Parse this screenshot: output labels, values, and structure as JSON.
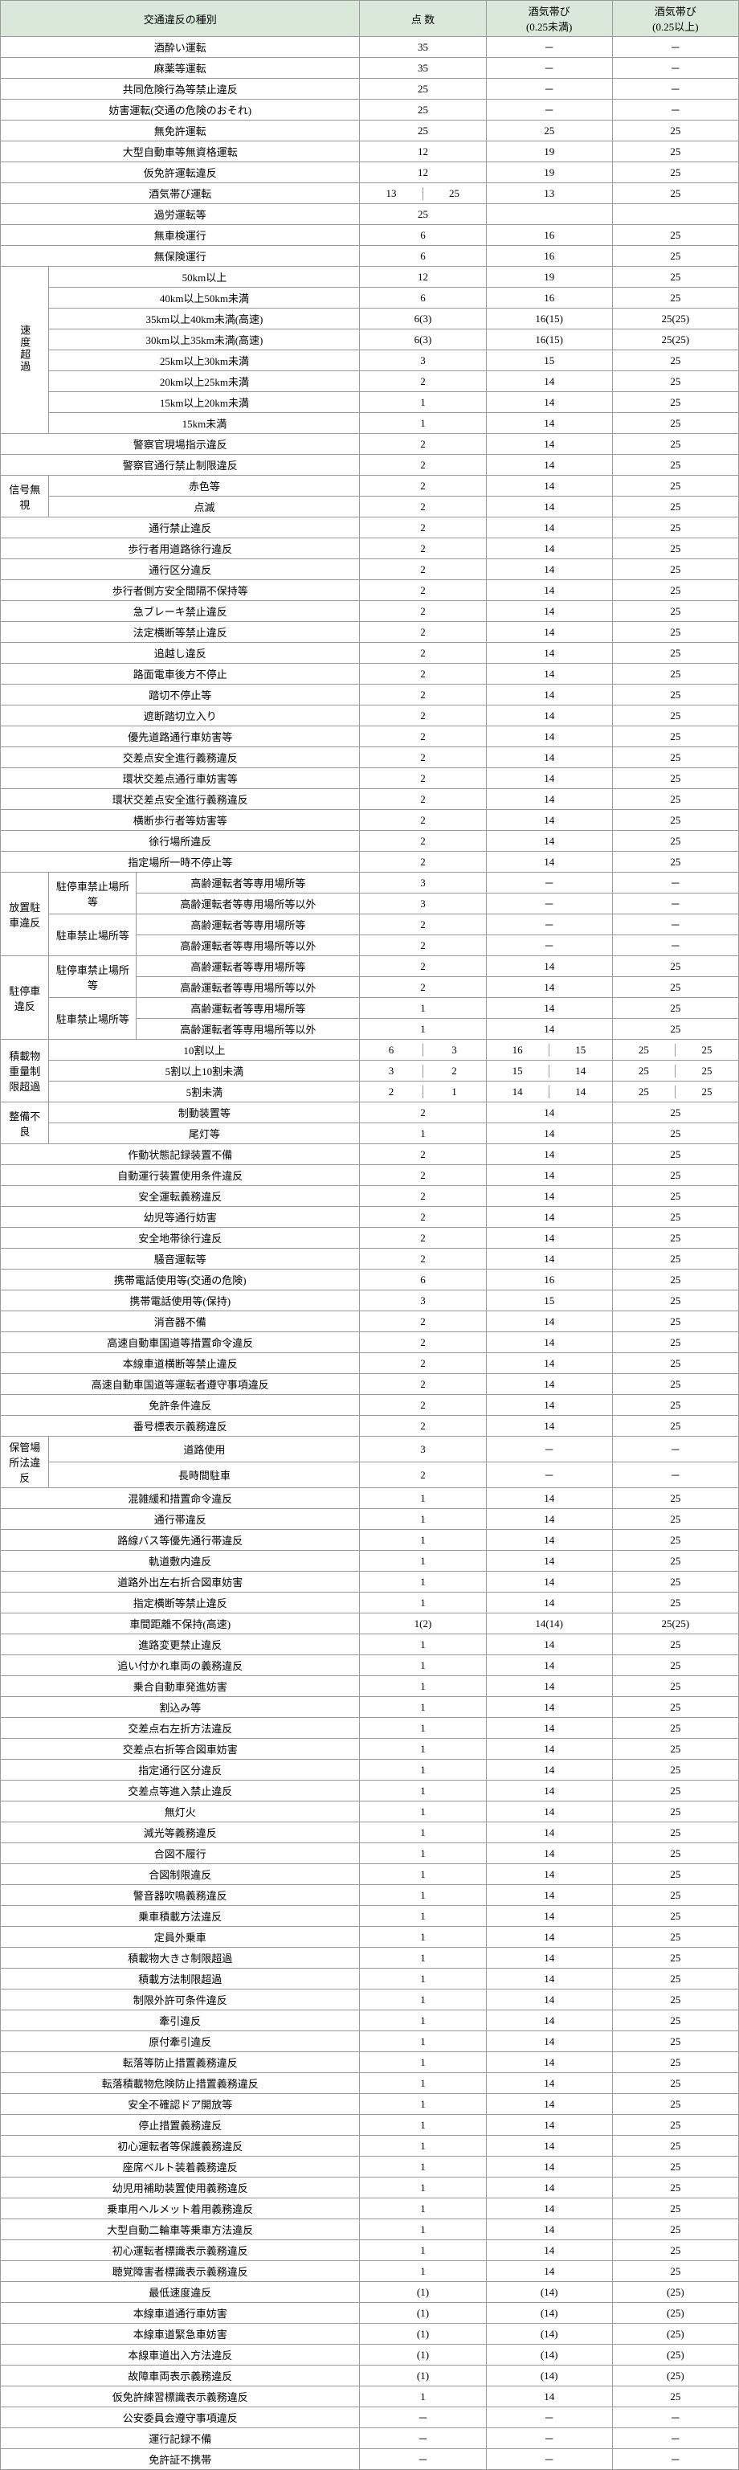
{
  "headers": {
    "type": "交通違反の種別",
    "points": "点 数",
    "sake_lo": "酒気帯び<br>(0.25未満)",
    "sake_hi": "酒気帯び<br>(0.25以上)"
  },
  "colors": {
    "header_bg": "#d9e8d9",
    "border": "#999999",
    "text": "#000000"
  },
  "simpleRows1": [
    [
      "酒酔い運転",
      "35",
      "－",
      "－"
    ],
    [
      "麻薬等運転",
      "35",
      "－",
      "－"
    ],
    [
      "共同危険行為等禁止違反",
      "25",
      "－",
      "－"
    ],
    [
      "妨害運転(交通の危険のおそれ)",
      "25",
      "－",
      "－"
    ],
    [
      "無免許運転",
      "25",
      "25",
      "25"
    ],
    [
      "大型自動車等無資格運転",
      "12",
      "19",
      "25"
    ],
    [
      "仮免許運転違反",
      "12",
      "19",
      "25"
    ]
  ],
  "sakeRow": {
    "label": "酒気帯び運転",
    "pts_a": "13",
    "pts_b": "25",
    "lo": "13",
    "hi": "25"
  },
  "simpleRows2": [
    [
      "過労運転等",
      "25",
      "",
      ""
    ],
    [
      "無車検運行",
      "6",
      "16",
      "25"
    ],
    [
      "無保険運行",
      "6",
      "16",
      "25"
    ]
  ],
  "speed": {
    "label": "速度超過",
    "rows": [
      [
        "50km以上",
        "12",
        "19",
        "25"
      ],
      [
        "40km以上50km未満",
        "6",
        "16",
        "25"
      ],
      [
        "35km以上40km未満(高速)",
        "6(3)",
        "16(15)",
        "25(25)"
      ],
      [
        "30km以上35km未満(高速)",
        "6(3)",
        "16(15)",
        "25(25)"
      ],
      [
        "25km以上30km未満",
        "3",
        "15",
        "25"
      ],
      [
        "20km以上25km未満",
        "2",
        "14",
        "25"
      ],
      [
        "15km以上20km未満",
        "1",
        "14",
        "25"
      ],
      [
        "15km未満",
        "1",
        "14",
        "25"
      ]
    ]
  },
  "simpleRows3": [
    [
      "警察官現場指示違反",
      "2",
      "14",
      "25"
    ],
    [
      "警察官通行禁止制限違反",
      "2",
      "14",
      "25"
    ]
  ],
  "signal": {
    "label": "信号無視",
    "rows": [
      [
        "赤色等",
        "2",
        "14",
        "25"
      ],
      [
        "点滅",
        "2",
        "14",
        "25"
      ]
    ]
  },
  "simpleRows4": [
    [
      "通行禁止違反",
      "2",
      "14",
      "25"
    ],
    [
      "歩行者用道路徐行違反",
      "2",
      "14",
      "25"
    ],
    [
      "通行区分違反",
      "2",
      "14",
      "25"
    ],
    [
      "歩行者側方安全間隔不保持等",
      "2",
      "14",
      "25"
    ],
    [
      "急ブレーキ禁止違反",
      "2",
      "14",
      "25"
    ],
    [
      "法定横断等禁止違反",
      "2",
      "14",
      "25"
    ],
    [
      "追越し違反",
      "2",
      "14",
      "25"
    ],
    [
      "路面電車後方不停止",
      "2",
      "14",
      "25"
    ],
    [
      "踏切不停止等",
      "2",
      "14",
      "25"
    ],
    [
      "遮断踏切立入り",
      "2",
      "14",
      "25"
    ],
    [
      "優先道路通行車妨害等",
      "2",
      "14",
      "25"
    ],
    [
      "交差点安全進行義務違反",
      "2",
      "14",
      "25"
    ],
    [
      "環状交差点通行車妨害等",
      "2",
      "14",
      "25"
    ],
    [
      "環状交差点安全進行義務違反",
      "2",
      "14",
      "25"
    ],
    [
      "横断歩行者等妨害等",
      "2",
      "14",
      "25"
    ],
    [
      "徐行場所違反",
      "2",
      "14",
      "25"
    ],
    [
      "指定場所一時不停止等",
      "2",
      "14",
      "25"
    ]
  ],
  "houchi": {
    "label": "放置駐車違反",
    "groups": [
      {
        "sub": "駐停車禁止場所等",
        "rows": [
          [
            "高齢運転者等専用場所等",
            "3",
            "－",
            "－"
          ],
          [
            "高齢運転者等専用場所等以外",
            "3",
            "－",
            "－"
          ]
        ]
      },
      {
        "sub": "駐車禁止場所等",
        "rows": [
          [
            "高齢運転者等専用場所等",
            "2",
            "－",
            "－"
          ],
          [
            "高齢運転者等専用場所等以外",
            "2",
            "－",
            "－"
          ]
        ]
      }
    ]
  },
  "chusha": {
    "label": "駐停車違反",
    "groups": [
      {
        "sub": "駐停車禁止場所等",
        "rows": [
          [
            "高齢運転者等専用場所等",
            "2",
            "14",
            "25"
          ],
          [
            "高齢運転者等専用場所等以外",
            "2",
            "14",
            "25"
          ]
        ]
      },
      {
        "sub": "駐車禁止場所等",
        "rows": [
          [
            "高齢運転者等専用場所等",
            "1",
            "14",
            "25"
          ],
          [
            "高齢運転者等専用場所等以外",
            "1",
            "14",
            "25"
          ]
        ]
      }
    ]
  },
  "sekisai": {
    "label": "積載物重量制限超過",
    "rows": [
      {
        "l": "10割以上",
        "p": [
          "6",
          "3"
        ],
        "lo": [
          "16",
          "15"
        ],
        "hi": [
          "25",
          "25"
        ]
      },
      {
        "l": "5割以上10割未満",
        "p": [
          "3",
          "2"
        ],
        "lo": [
          "15",
          "14"
        ],
        "hi": [
          "25",
          "25"
        ]
      },
      {
        "l": "5割未満",
        "p": [
          "2",
          "1"
        ],
        "lo": [
          "14",
          "14"
        ],
        "hi": [
          "25",
          "25"
        ]
      }
    ]
  },
  "seibi": {
    "label": "整備不良",
    "rows": [
      [
        "制動装置等",
        "2",
        "14",
        "25"
      ],
      [
        "尾灯等",
        "1",
        "14",
        "25"
      ]
    ]
  },
  "simpleRows5": [
    [
      "作動状態記録装置不備",
      "2",
      "14",
      "25"
    ],
    [
      "自動運行装置使用条件違反",
      "2",
      "14",
      "25"
    ],
    [
      "安全運転義務違反",
      "2",
      "14",
      "25"
    ],
    [
      "幼児等通行妨害",
      "2",
      "14",
      "25"
    ],
    [
      "安全地帯徐行違反",
      "2",
      "14",
      "25"
    ],
    [
      "騒音運転等",
      "2",
      "14",
      "25"
    ],
    [
      "携帯電話使用等(交通の危険)",
      "6",
      "16",
      "25"
    ],
    [
      "携帯電話使用等(保持)",
      "3",
      "15",
      "25"
    ],
    [
      "消音器不備",
      "2",
      "14",
      "25"
    ],
    [
      "高速自動車国道等措置命令違反",
      "2",
      "14",
      "25"
    ],
    [
      "本線車道横断等禁止違反",
      "2",
      "14",
      "25"
    ],
    [
      "高速自動車国道等運転者遵守事項違反",
      "2",
      "14",
      "25"
    ],
    [
      "免許条件違反",
      "2",
      "14",
      "25"
    ],
    [
      "番号標表示義務違反",
      "2",
      "14",
      "25"
    ]
  ],
  "hokan": {
    "label": "保管場所法違反",
    "rows": [
      [
        "道路使用",
        "3",
        "－",
        "－"
      ],
      [
        "長時間駐車",
        "2",
        "－",
        "－"
      ]
    ]
  },
  "simpleRows6": [
    [
      "混雑緩和措置命令違反",
      "1",
      "14",
      "25"
    ],
    [
      "通行帯違反",
      "1",
      "14",
      "25"
    ],
    [
      "路線バス等優先通行帯違反",
      "1",
      "14",
      "25"
    ],
    [
      "軌道敷内違反",
      "1",
      "14",
      "25"
    ],
    [
      "道路外出左右折合図車妨害",
      "1",
      "14",
      "25"
    ],
    [
      "指定横断等禁止違反",
      "1",
      "14",
      "25"
    ],
    [
      "車間距離不保持(高速)",
      "1(2)",
      "14(14)",
      "25(25)"
    ],
    [
      "進路変更禁止違反",
      "1",
      "14",
      "25"
    ],
    [
      "追い付かれ車両の義務違反",
      "1",
      "14",
      "25"
    ],
    [
      "乗合自動車発進妨害",
      "1",
      "14",
      "25"
    ],
    [
      "割込み等",
      "1",
      "14",
      "25"
    ],
    [
      "交差点右左折方法違反",
      "1",
      "14",
      "25"
    ],
    [
      "交差点右折等合図車妨害",
      "1",
      "14",
      "25"
    ],
    [
      "指定通行区分違反",
      "1",
      "14",
      "25"
    ],
    [
      "交差点等進入禁止違反",
      "1",
      "14",
      "25"
    ],
    [
      "無灯火",
      "1",
      "14",
      "25"
    ],
    [
      "減光等義務違反",
      "1",
      "14",
      "25"
    ],
    [
      "合図不履行",
      "1",
      "14",
      "25"
    ],
    [
      "合図制限違反",
      "1",
      "14",
      "25"
    ],
    [
      "警音器吹鳴義務違反",
      "1",
      "14",
      "25"
    ],
    [
      "乗車積載方法違反",
      "1",
      "14",
      "25"
    ],
    [
      "定員外乗車",
      "1",
      "14",
      "25"
    ],
    [
      "積載物大きさ制限超過",
      "1",
      "14",
      "25"
    ],
    [
      "積載方法制限超過",
      "1",
      "14",
      "25"
    ],
    [
      "制限外許可条件違反",
      "1",
      "14",
      "25"
    ],
    [
      "牽引違反",
      "1",
      "14",
      "25"
    ],
    [
      "原付牽引違反",
      "1",
      "14",
      "25"
    ],
    [
      "転落等防止措置義務違反",
      "1",
      "14",
      "25"
    ],
    [
      "転落積載物危険防止措置義務違反",
      "1",
      "14",
      "25"
    ],
    [
      "安全不確認ドア開放等",
      "1",
      "14",
      "25"
    ],
    [
      "停止措置義務違反",
      "1",
      "14",
      "25"
    ],
    [
      "初心運転者等保護義務違反",
      "1",
      "14",
      "25"
    ],
    [
      "座席ベルト装着義務違反",
      "1",
      "14",
      "25"
    ],
    [
      "幼児用補助装置使用義務違反",
      "1",
      "14",
      "25"
    ],
    [
      "乗車用ヘルメット着用義務違反",
      "1",
      "14",
      "25"
    ],
    [
      "大型自動二輪車等乗車方法違反",
      "1",
      "14",
      "25"
    ],
    [
      "初心運転者標識表示義務違反",
      "1",
      "14",
      "25"
    ],
    [
      "聴覚障害者標識表示義務違反",
      "1",
      "14",
      "25"
    ],
    [
      "最低速度違反",
      "(1)",
      "(14)",
      "(25)"
    ],
    [
      "本線車道通行車妨害",
      "(1)",
      "(14)",
      "(25)"
    ],
    [
      "本線車道緊急車妨害",
      "(1)",
      "(14)",
      "(25)"
    ],
    [
      "本線車道出入方法違反",
      "(1)",
      "(14)",
      "(25)"
    ],
    [
      "故障車両表示義務違反",
      "(1)",
      "(14)",
      "(25)"
    ],
    [
      "仮免許練習標識表示義務違反",
      "1",
      "14",
      "25"
    ],
    [
      "公安委員会遵守事項違反",
      "－",
      "－",
      "－"
    ],
    [
      "運行記録不備",
      "－",
      "－",
      "－"
    ],
    [
      "免許証不携帯",
      "－",
      "－",
      "－"
    ]
  ]
}
